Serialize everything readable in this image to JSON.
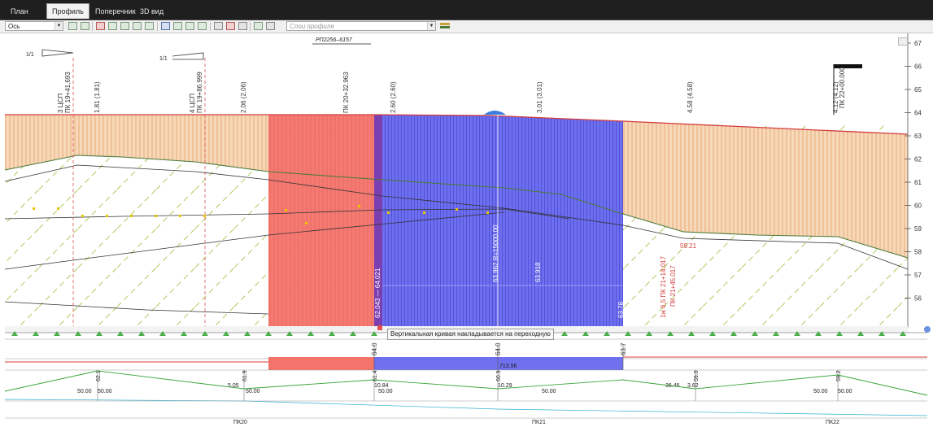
{
  "tabs": [
    {
      "label": "План",
      "active": false
    },
    {
      "label": "Профиль",
      "active": true
    },
    {
      "label": "Поперечник",
      "active": false
    },
    {
      "label": "3D вид",
      "active": false
    }
  ],
  "toolbar": {
    "axis_select": "Ось",
    "layers_placeholder": "Слои профиля"
  },
  "profile": {
    "title": "РП2256–6157",
    "slope_signs": [
      "1/1",
      "1/1"
    ],
    "elevation_axis": [
      "67",
      "66",
      "65",
      "64",
      "63",
      "62",
      "61",
      "60",
      "59",
      "58",
      "57",
      "56"
    ],
    "vertical_labels": [
      "3 ЦСП",
      "ПК 19+41,693",
      "4 ЦСП",
      "ПК 19+86.999",
      "ПК 20+32.963",
      "1.81 (1.81)",
      "2.06 (2.06)",
      "2.60 (2.60)",
      "3.01 (3.01)",
      "4.58 (4.58)",
      "4.12 (4.12)",
      "ПК 22+00.000",
      "62.043 — 64.021",
      "63.962 R=15000.00",
      "63.918",
      "63.78",
      "1ж  6,5 ПК 21+14.017",
      "ПК 21+45.017",
      "59.21"
    ],
    "tooltip": "Вертикальная кривая накладывается на переходную",
    "colors": {
      "red_zone": "#f0807a",
      "blue_zone": "#7070ee",
      "fill": "#f2c9a0",
      "ground": "#d43d3d"
    }
  },
  "bands": {
    "vc_marks": [
      "64.0",
      "64.0",
      "63.7"
    ],
    "vc_value": "713.56",
    "elevations": [
      "62.2",
      "61.9",
      "61.4",
      "60.9",
      "59.0",
      "59.2"
    ],
    "slopes": [
      "50.00",
      "50.00",
      "5.05",
      "50.00",
      "10.84",
      "50.00",
      "10.29",
      "50.00",
      "36.46",
      "3.62",
      "50.00",
      "50.00"
    ],
    "stations": [
      "ПК20",
      "ПК21",
      "ПК22"
    ]
  }
}
